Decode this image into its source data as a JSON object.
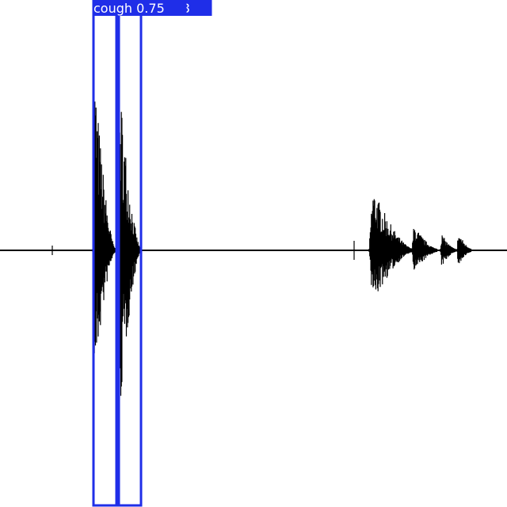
{
  "detections": [
    {
      "label": "cough",
      "score": 0.75
    },
    {
      "label": "cough",
      "score": 0.68
    }
  ]
}
